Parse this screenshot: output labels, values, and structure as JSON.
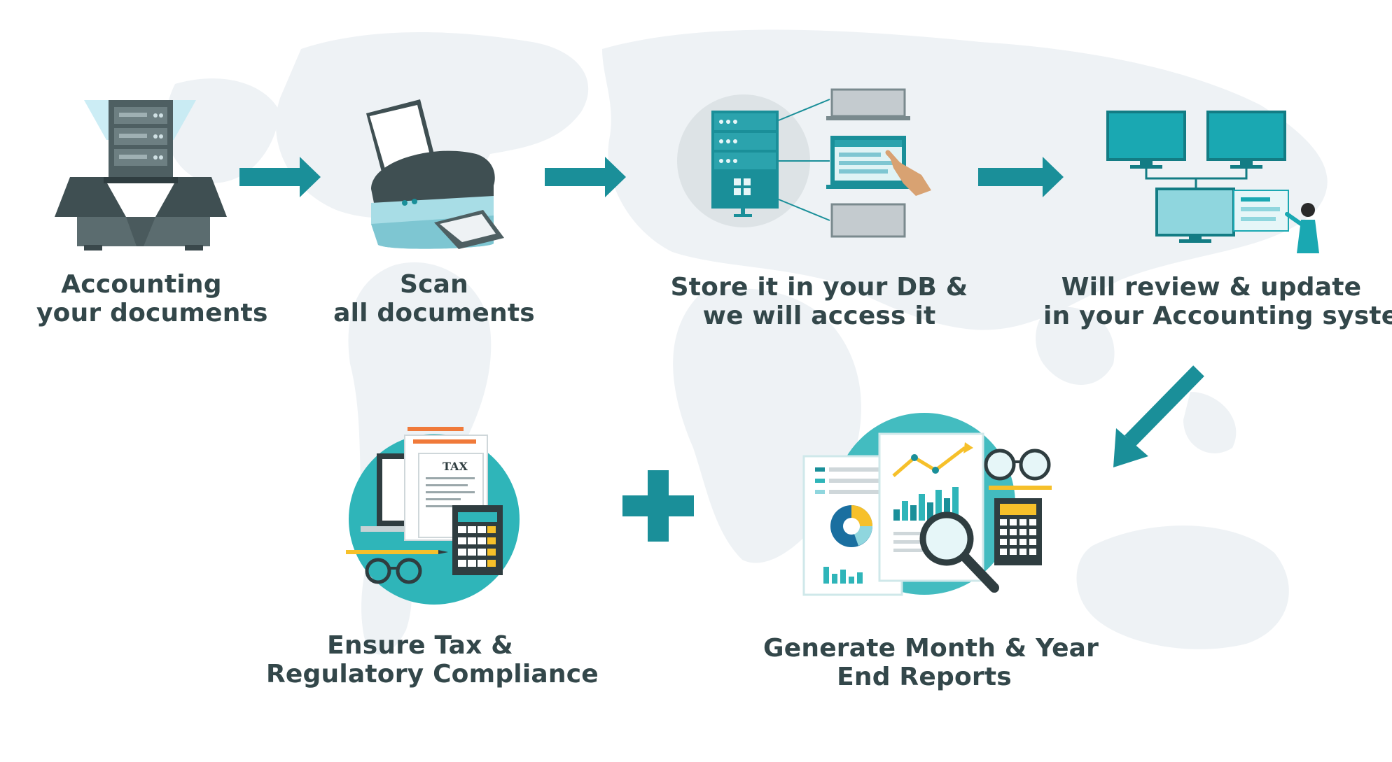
{
  "steps": [
    {
      "line1": "Accounting",
      "line2": "your documents"
    },
    {
      "line1": "Scan",
      "line2": "all documents"
    },
    {
      "line1": "Store it in your DB &",
      "line2": "we will access it"
    },
    {
      "line1": "Will review & update",
      "line2": "in your Accounting system"
    },
    {
      "line1": "Ensure Tax &",
      "line2": "Regulatory Compliance"
    },
    {
      "line1": "Generate Month & Year",
      "line2": "End Reports"
    }
  ],
  "icons": {
    "step1": "server-box-icon",
    "step2": "printer-scanner-icon",
    "step3": "database-server-icon",
    "step4": "monitors-network-icon",
    "step5": "tax-documents-calculator-icon",
    "step6": "reports-analytics-icon"
  },
  "tax_doc_text": "TAX",
  "colors": {
    "teal": "#1a8f99",
    "teal_light": "#3bb8be",
    "dark_slate": "#4e5f62",
    "text": "#33474a",
    "map": "#eef2f4",
    "orange": "#f07a3a",
    "yellow": "#f6c02a"
  }
}
